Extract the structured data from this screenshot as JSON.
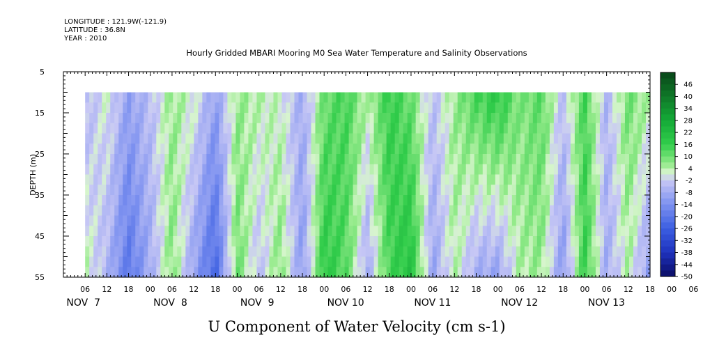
{
  "header": {
    "longitude": "LONGITUDE : 121.9W(-121.9)",
    "latitude": "LATITUDE : 36.8N",
    "year": "YEAR : 2010"
  },
  "chart_data": {
    "type": "heatmap",
    "title": "Hourly Gridded MBARI Mooring M0 Sea Water Temperature and Salinity Observations",
    "xlabel": "",
    "ylabel": "DEPTH (m)",
    "bottom_title": "U Component of Water Velocity (cm s-1)",
    "x_time_ticks": [
      "06",
      "12",
      "18",
      "00",
      "06",
      "12",
      "18",
      "00",
      "06",
      "12",
      "18",
      "00",
      "06",
      "12",
      "18",
      "00",
      "06",
      "12",
      "18",
      "00",
      "06",
      "12",
      "18",
      "00",
      "06",
      "12",
      "18",
      "00",
      "06",
      "12",
      "18",
      "00"
    ],
    "x_day_labels": [
      "NOV  7",
      "NOV  8",
      "NOV  9",
      "NOV 10",
      "NOV 11",
      "NOV 12",
      "NOV 13"
    ],
    "y_tick_labels": [
      "5",
      "15",
      "25",
      "35",
      "45",
      "55"
    ],
    "ylim": [
      55,
      5
    ],
    "data_depth_range": [
      10,
      55
    ],
    "time_range_hours_from_nov7_00": [
      -12,
      150
    ],
    "colorbar": {
      "labels": [
        "46",
        "40",
        "34",
        "28",
        "22",
        "16",
        "10",
        "4",
        "-2",
        "-8",
        "-14",
        "-20",
        "-26",
        "-32",
        "-38",
        "-44",
        "-50"
      ],
      "min": -50,
      "max": 52,
      "step": 3,
      "colors": {
        "strong_positive": "#0b4d1d",
        "mid_positive": "#18b83a",
        "weak_positive": "#b9f0b4",
        "weak_negative": "#c9c9f4",
        "mid_negative": "#6f86ea",
        "strong_negative": "#0b0c6e"
      }
    },
    "column_profile_description": "U velocity vs time: mostly negative (blue) Nov 7-9, positive (green) Nov 10-13 with intermittent negative bands",
    "time_bands_hours": [
      {
        "t": -12,
        "u_top": -8,
        "u_bottom": -10
      },
      {
        "t": -6,
        "u_top": -6,
        "u_bottom": 4
      },
      {
        "t": 0,
        "u_top": 2,
        "u_bottom": -6
      },
      {
        "t": 6,
        "u_top": -10,
        "u_bottom": -20
      },
      {
        "t": 12,
        "u_top": -4,
        "u_bottom": -8
      },
      {
        "t": 18,
        "u_top": 6,
        "u_bottom": 8
      },
      {
        "t": 24,
        "u_top": 2,
        "u_bottom": -10
      },
      {
        "t": 30,
        "u_top": -10,
        "u_bottom": -24
      },
      {
        "t": 36,
        "u_top": 6,
        "u_bottom": 10
      },
      {
        "t": 42,
        "u_top": 4,
        "u_bottom": -4
      },
      {
        "t": 48,
        "u_top": 2,
        "u_bottom": 8
      },
      {
        "t": 54,
        "u_top": -8,
        "u_bottom": -12
      },
      {
        "t": 60,
        "u_top": 10,
        "u_bottom": 18
      },
      {
        "t": 66,
        "u_top": 14,
        "u_bottom": 12
      },
      {
        "t": 72,
        "u_top": 4,
        "u_bottom": -8
      },
      {
        "t": 78,
        "u_top": 16,
        "u_bottom": 14
      },
      {
        "t": 84,
        "u_top": 10,
        "u_bottom": 20
      },
      {
        "t": 90,
        "u_top": -4,
        "u_bottom": -10
      },
      {
        "t": 96,
        "u_top": 6,
        "u_bottom": 4
      },
      {
        "t": 102,
        "u_top": 14,
        "u_bottom": -8
      },
      {
        "t": 108,
        "u_top": 18,
        "u_bottom": -10
      },
      {
        "t": 114,
        "u_top": 8,
        "u_bottom": 4
      },
      {
        "t": 120,
        "u_top": 12,
        "u_bottom": 6
      },
      {
        "t": 126,
        "u_top": -4,
        "u_bottom": -12
      },
      {
        "t": 132,
        "u_top": 14,
        "u_bottom": 16
      },
      {
        "t": 138,
        "u_top": -6,
        "u_bottom": -8
      },
      {
        "t": 144,
        "u_top": 10,
        "u_bottom": 4
      },
      {
        "t": 150,
        "u_top": 4,
        "u_bottom": -12
      }
    ]
  }
}
